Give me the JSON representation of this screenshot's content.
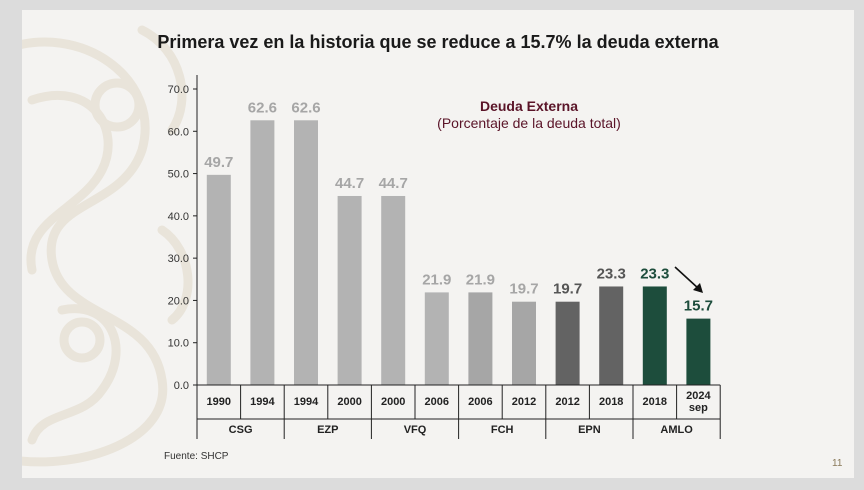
{
  "title": "Primera vez en la historia que se reduce a 15.7% la deuda externa",
  "legend": {
    "line1": "Deuda Externa",
    "line2": "(Porcentaje de la deuda total)"
  },
  "source": "Fuente: SHCP",
  "page_number": "11",
  "colors": {
    "light_bar": "#b3b3b3",
    "mid_bar": "#a6a6a6",
    "dark_bar": "#636363",
    "green_bar": "#1d4d3c",
    "light_label": "#a6a6a6",
    "dark_label": "#555555",
    "green_label": "#1d4d3c"
  },
  "chart_data": {
    "type": "bar",
    "ylim": [
      0,
      70
    ],
    "yticks": [
      "0.0",
      "10.0",
      "20.0",
      "30.0",
      "40.0",
      "50.0",
      "60.0",
      "70.0"
    ],
    "categories": [
      "1990",
      "1994",
      "1994",
      "2000",
      "2000",
      "2006",
      "2006",
      "2012",
      "2012",
      "2018",
      "2018",
      "2024 sep"
    ],
    "values": [
      49.7,
      62.6,
      62.6,
      44.7,
      44.7,
      21.9,
      21.9,
      19.7,
      19.7,
      23.3,
      23.3,
      15.7
    ],
    "value_labels": [
      "49.7",
      "62.6",
      "62.6",
      "44.7",
      "44.7",
      "21.9",
      "21.9",
      "19.7",
      "19.7",
      "23.3",
      "23.3",
      "15.7"
    ],
    "groups": [
      {
        "name": "CSG",
        "span": 2,
        "shade": "light"
      },
      {
        "name": "EZP",
        "span": 2,
        "shade": "light"
      },
      {
        "name": "VFQ",
        "span": 2,
        "shade": "light"
      },
      {
        "name": "FCH",
        "span": 2,
        "shade": "mid"
      },
      {
        "name": "EPN",
        "span": 2,
        "shade": "dark"
      },
      {
        "name": "AMLO",
        "span": 2,
        "shade": "green"
      }
    ],
    "annotation": "arrow pointing down to the 2024 sep bar"
  }
}
